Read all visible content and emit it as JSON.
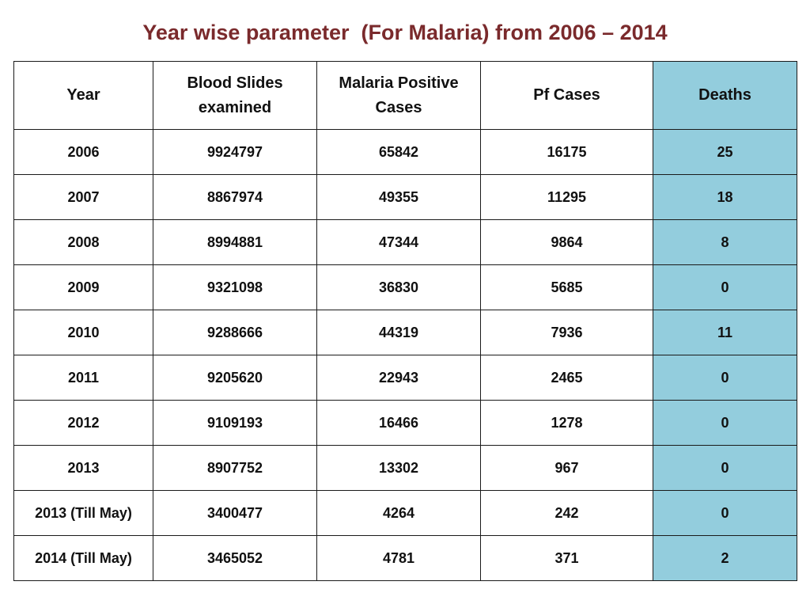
{
  "title": "Year wise parameter  (For Malaria) from 2006 – 2014",
  "table": {
    "headers": [
      "Year",
      "Blood Slides examined",
      "Malaria Positive Cases",
      "Pf Cases",
      "Deaths"
    ],
    "rows": [
      [
        "2006",
        "9924797",
        "65842",
        "16175",
        "25"
      ],
      [
        "2007",
        "8867974",
        "49355",
        "11295",
        "18"
      ],
      [
        "2008",
        "8994881",
        "47344",
        "9864",
        "8"
      ],
      [
        "2009",
        "9321098",
        "36830",
        "5685",
        "0"
      ],
      [
        "2010",
        "9288666",
        "44319",
        "7936",
        "11"
      ],
      [
        "2011",
        "9205620",
        "22943",
        "2465",
        "0"
      ],
      [
        "2012",
        "9109193",
        "16466",
        "1278",
        "0"
      ],
      [
        "2013",
        "8907752",
        "13302",
        "967",
        "0"
      ],
      [
        "2013 (Till May)",
        "3400477",
        "4264",
        "242",
        "0"
      ],
      [
        "2014 (Till May)",
        "3465052",
        "4781",
        "371",
        "2"
      ]
    ]
  },
  "colors": {
    "title": "#7a2a2c",
    "deaths_column": "#93cddd",
    "border": "#1a1a1a"
  }
}
